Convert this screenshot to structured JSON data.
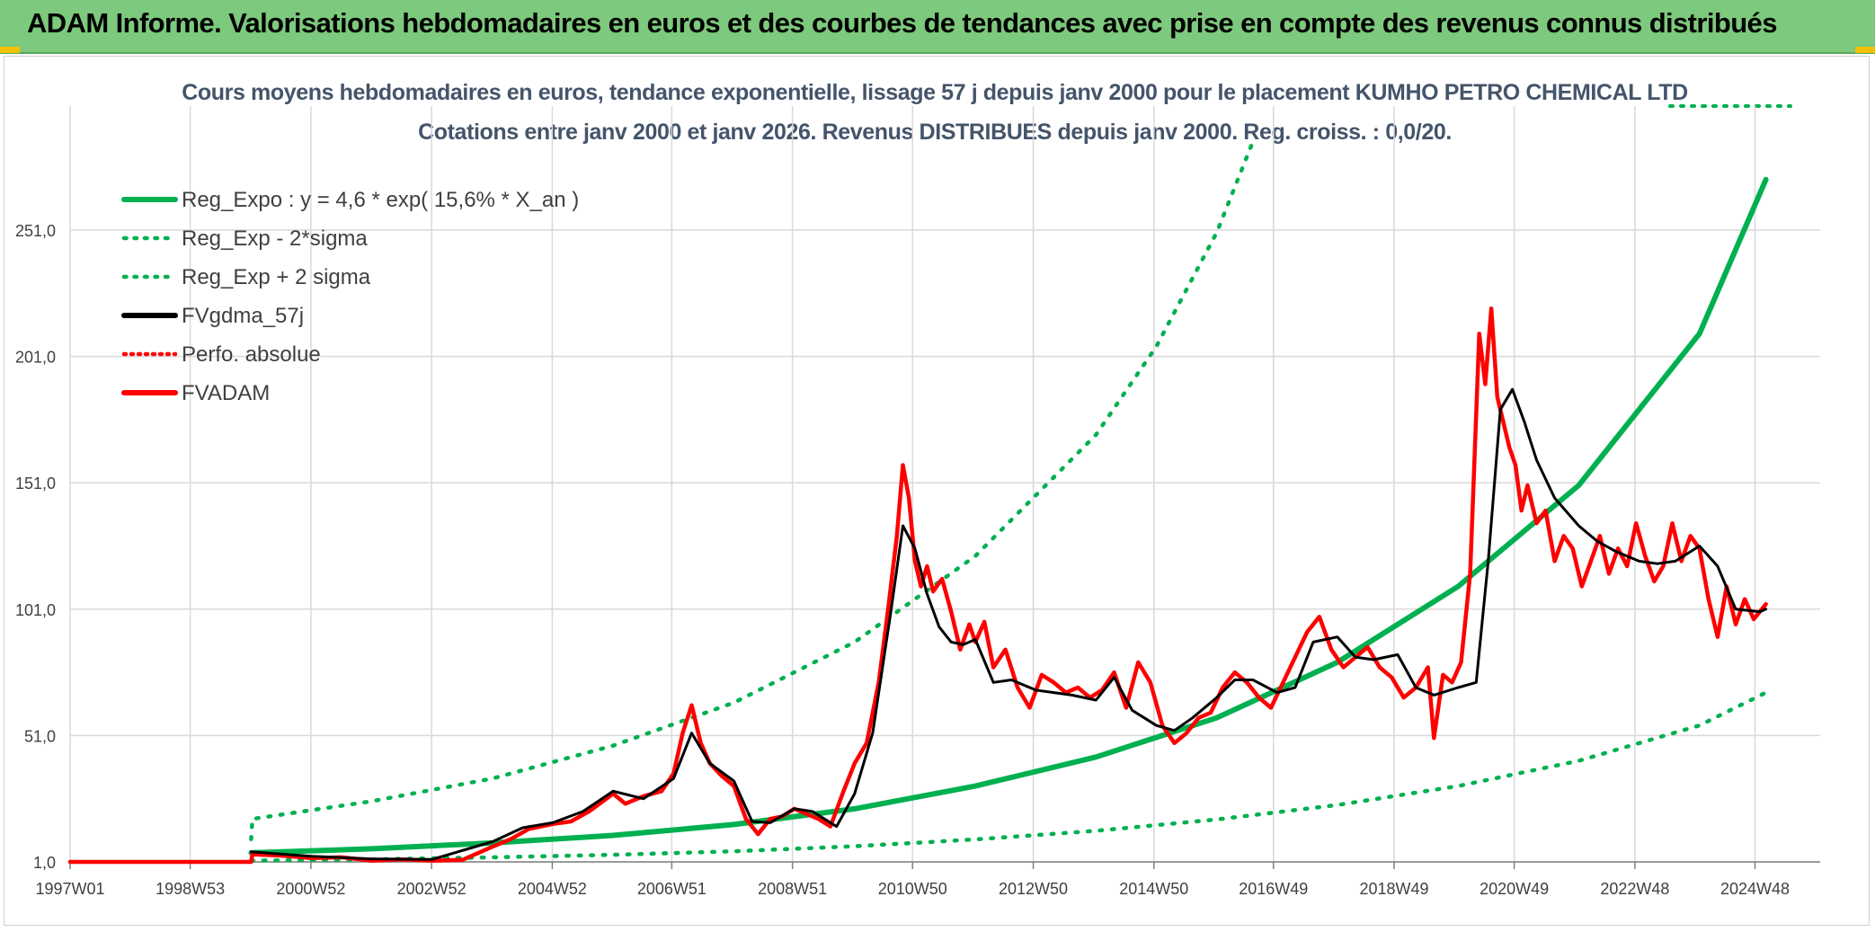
{
  "header": {
    "title": "ADAM Informe. Valorisations hebdomadaires en euros et des courbes de tendances avec prise en compte des revenus connus distribués"
  },
  "chart_data": {
    "type": "line",
    "title": "Cours moyens hebdomadaires en euros, tendance exponentielle, lissage 57 j depuis janv 2000 pour le placement KUMHO PETRO CHEMICAL LTD",
    "subtitle": "Cotations entre janv 2000 et janv 2026. Revenus DISTRIBUES depuis janv 2000. Reg. croiss. : 0,0/20.",
    "xlabel": "",
    "ylabel": "",
    "x_range": [
      1997.0,
      2026.0
    ],
    "ylim": [
      1,
      286
    ],
    "y_ticks": [
      1,
      51,
      101,
      151,
      201,
      251
    ],
    "y_tick_labels": [
      "1,0",
      "51,0",
      "101,0",
      "151,0",
      "201,0",
      "251,0"
    ],
    "x_ticks": [
      1997.0,
      1998.99,
      2000.99,
      2002.99,
      2004.99,
      2006.97,
      2008.97,
      2010.96,
      2012.96,
      2014.96,
      2016.94,
      2018.94,
      2020.93,
      2022.93,
      2024.92
    ],
    "x_tick_labels": [
      "1997W01",
      "1998W53",
      "2000W52",
      "2002W52",
      "2004W52",
      "2006W51",
      "2008W51",
      "2010W50",
      "2012W50",
      "2014W50",
      "2016W49",
      "2018W49",
      "2020W49",
      "2022W48",
      "2024W48"
    ],
    "grid": true,
    "legend_position": "top-left",
    "colors": {
      "green": "#00b050",
      "black": "#000000",
      "red": "#ff0000"
    },
    "series": [
      {
        "name": "Reg_Expo : y = 4,6 * exp( 15,6% *  X_an )",
        "style": "solid-thick",
        "color": "#00b050",
        "x": [
          2000.0,
          2002.0,
          2004.0,
          2006.0,
          2008.0,
          2010.0,
          2012.0,
          2014.0,
          2016.0,
          2018.0,
          2020.0,
          2022.0,
          2024.0,
          2025.1
        ],
        "y": [
          4.6,
          6.2,
          8.5,
          11.5,
          15.8,
          22.0,
          31.0,
          42.5,
          58.0,
          80.0,
          110.0,
          150.0,
          210.0,
          271.0
        ]
      },
      {
        "name": "Reg_Exp - 2*sigma",
        "style": "dotted",
        "color": "#00b050",
        "x": [
          2000.0,
          2002.0,
          2004.0,
          2006.0,
          2008.0,
          2010.0,
          2012.0,
          2014.0,
          2016.0,
          2018.0,
          2020.0,
          2022.0,
          2024.0,
          2025.1
        ],
        "y": [
          1.5,
          2.0,
          2.8,
          3.8,
          5.2,
          7.2,
          9.9,
          13.3,
          17.8,
          23.5,
          31.0,
          41.0,
          55.0,
          68.0
        ]
      },
      {
        "name": "Reg_Exp + 2 sigma",
        "style": "dotted",
        "color": "#00b050",
        "x": [
          2000.0,
          2000.02,
          2002.0,
          2004.0,
          2006.0,
          2008.0,
          2010.0,
          2012.0,
          2014.0,
          2015.0,
          2016.0,
          2016.6
        ],
        "y": [
          10.0,
          18.0,
          25.0,
          34.0,
          47.0,
          64.0,
          88.0,
          122.0,
          170.0,
          205.0,
          250.0,
          286.0
        ]
      },
      {
        "name": "FVgdma_57j",
        "style": "solid",
        "color": "#000000",
        "x": [
          2000.0,
          2001.0,
          2002.0,
          2003.0,
          2004.0,
          2004.5,
          2005.0,
          2005.5,
          2006.0,
          2006.5,
          2007.0,
          2007.3,
          2007.6,
          2008.0,
          2008.3,
          2008.6,
          2009.0,
          2009.3,
          2009.7,
          2010.0,
          2010.3,
          2010.6,
          2010.8,
          2011.0,
          2011.2,
          2011.4,
          2011.6,
          2011.8,
          2012.0,
          2012.3,
          2012.6,
          2013.0,
          2013.3,
          2013.6,
          2014.0,
          2014.3,
          2014.6,
          2015.0,
          2015.3,
          2015.6,
          2016.0,
          2016.3,
          2016.6,
          2017.0,
          2017.3,
          2017.6,
          2018.0,
          2018.3,
          2018.6,
          2019.0,
          2019.3,
          2019.6,
          2020.0,
          2020.3,
          2020.5,
          2020.7,
          2020.9,
          2021.1,
          2021.3,
          2021.6,
          2022.0,
          2022.3,
          2022.6,
          2023.0,
          2023.3,
          2023.6,
          2024.0,
          2024.3,
          2024.6,
          2025.0,
          2025.1
        ],
        "y": [
          5.0,
          3.2,
          2.2,
          2.0,
          9.0,
          14.5,
          16.5,
          21.0,
          29.0,
          26.0,
          34.0,
          52.0,
          40.0,
          33.0,
          17.0,
          16.5,
          22.0,
          21.0,
          15.0,
          28.0,
          52.0,
          100.0,
          134.0,
          125.0,
          107.0,
          94.0,
          88.0,
          87.0,
          89.0,
          72.0,
          73.0,
          69.0,
          68.0,
          67.0,
          65.0,
          74.0,
          61.0,
          55.0,
          53.0,
          58.0,
          66.0,
          73.0,
          73.0,
          68.0,
          70.0,
          88.0,
          90.0,
          82.0,
          81.0,
          83.0,
          70.0,
          67.0,
          70.0,
          72.0,
          120.0,
          180.0,
          188.0,
          175.0,
          160.0,
          145.0,
          134.0,
          128.0,
          124.0,
          120.0,
          119.0,
          120.0,
          126.0,
          118.0,
          101.0,
          100.0,
          101.0
        ]
      },
      {
        "name": "Perfo. absolue",
        "style": "dotted",
        "color": "#ff0000",
        "x": [
          1997.0,
          2000.0
        ],
        "y": [
          1.0,
          1.0
        ]
      },
      {
        "name": "FVADAM",
        "style": "solid-thick",
        "color": "#ff0000",
        "x": [
          1997.0,
          2000.0,
          2000.02,
          2000.5,
          2001.0,
          2001.5,
          2002.0,
          2002.5,
          2003.0,
          2003.5,
          2004.0,
          2004.3,
          2004.6,
          2005.0,
          2005.3,
          2005.6,
          2006.0,
          2006.2,
          2006.5,
          2006.8,
          2007.0,
          2007.15,
          2007.3,
          2007.45,
          2007.6,
          2007.8,
          2008.0,
          2008.2,
          2008.4,
          2008.6,
          2008.8,
          2009.0,
          2009.2,
          2009.4,
          2009.6,
          2009.8,
          2010.0,
          2010.2,
          2010.4,
          2010.55,
          2010.7,
          2010.8,
          2010.9,
          2011.0,
          2011.1,
          2011.2,
          2011.3,
          2011.45,
          2011.6,
          2011.75,
          2011.9,
          2012.0,
          2012.15,
          2012.3,
          2012.5,
          2012.7,
          2012.9,
          2013.1,
          2013.3,
          2013.5,
          2013.7,
          2013.9,
          2014.1,
          2014.3,
          2014.5,
          2014.7,
          2014.9,
          2015.1,
          2015.3,
          2015.5,
          2015.7,
          2015.9,
          2016.1,
          2016.3,
          2016.5,
          2016.7,
          2016.9,
          2017.1,
          2017.3,
          2017.5,
          2017.7,
          2017.9,
          2018.1,
          2018.3,
          2018.5,
          2018.7,
          2018.9,
          2019.1,
          2019.3,
          2019.5,
          2019.6,
          2019.75,
          2019.9,
          2020.05,
          2020.2,
          2020.35,
          2020.45,
          2020.55,
          2020.65,
          2020.75,
          2020.85,
          2020.95,
          2021.05,
          2021.15,
          2021.3,
          2021.45,
          2021.6,
          2021.75,
          2021.9,
          2022.05,
          2022.2,
          2022.35,
          2022.5,
          2022.65,
          2022.8,
          2022.95,
          2023.1,
          2023.25,
          2023.4,
          2023.55,
          2023.7,
          2023.85,
          2024.0,
          2024.15,
          2024.3,
          2024.45,
          2024.6,
          2024.75,
          2024.9,
          2025.0,
          2025.1
        ],
        "y": [
          1.0,
          1.0,
          4.0,
          3.5,
          2.5,
          2.8,
          1.5,
          2.0,
          1.5,
          1.8,
          7.0,
          10.0,
          14.0,
          16.0,
          17.0,
          21.0,
          28.0,
          24.0,
          27.0,
          29.0,
          36.0,
          52.0,
          63.0,
          48.0,
          40.0,
          35.0,
          31.0,
          18.0,
          12.0,
          18.0,
          19.0,
          22.0,
          20.0,
          18.0,
          15.0,
          28.0,
          40.0,
          48.0,
          72.0,
          100.0,
          130.0,
          158.0,
          145.0,
          120.0,
          110.0,
          118.0,
          108.0,
          113.0,
          100.0,
          85.0,
          95.0,
          88.0,
          96.0,
          78.0,
          85.0,
          70.0,
          62.0,
          75.0,
          72.0,
          68.0,
          70.0,
          66.0,
          69.0,
          76.0,
          62.0,
          80.0,
          72.0,
          55.0,
          48.0,
          52.0,
          58.0,
          60.0,
          70.0,
          76.0,
          72.0,
          66.0,
          62.0,
          72.0,
          82.0,
          92.0,
          98.0,
          85.0,
          78.0,
          82.0,
          86.0,
          78.0,
          74.0,
          66.0,
          70.0,
          78.0,
          50.0,
          75.0,
          72.0,
          80.0,
          115.0,
          210.0,
          190.0,
          220.0,
          185.0,
          175.0,
          165.0,
          158.0,
          140.0,
          150.0,
          135.0,
          140.0,
          120.0,
          130.0,
          125.0,
          110.0,
          120.0,
          130.0,
          115.0,
          125.0,
          118.0,
          135.0,
          122.0,
          112.0,
          118.0,
          135.0,
          120.0,
          130.0,
          125.0,
          105.0,
          90.0,
          110.0,
          95.0,
          105.0,
          97.0,
          100.0,
          103.0
        ]
      }
    ]
  }
}
